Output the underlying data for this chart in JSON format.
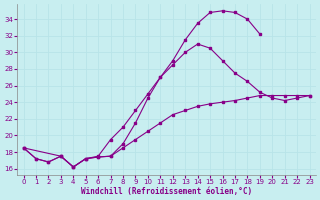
{
  "xlabel": "Windchill (Refroidissement éolien,°C)",
  "bg_color": "#c8eef0",
  "grid_color": "#b8e4e8",
  "line_color": "#880088",
  "x_ticks": [
    0,
    1,
    2,
    3,
    4,
    5,
    6,
    7,
    8,
    9,
    10,
    11,
    12,
    13,
    14,
    15,
    16,
    17,
    18,
    19,
    20,
    21,
    22,
    23
  ],
  "y_ticks": [
    16,
    18,
    20,
    22,
    24,
    26,
    28,
    30,
    32,
    34
  ],
  "xlim": [
    -0.5,
    23.5
  ],
  "ylim": [
    15.2,
    35.8
  ],
  "curve_upper_x": [
    0,
    1,
    2,
    3,
    4,
    5,
    6,
    7,
    8,
    9,
    10,
    11,
    12,
    13,
    14,
    15,
    16,
    17,
    18,
    19
  ],
  "curve_upper_y": [
    18.5,
    17.2,
    16.8,
    17.5,
    16.2,
    17.2,
    17.4,
    17.5,
    19.0,
    21.5,
    24.5,
    27.0,
    29.0,
    31.5,
    33.5,
    34.8,
    35.0,
    34.8,
    34.0,
    32.2
  ],
  "curve_mid_x": [
    0,
    3,
    4,
    5,
    6,
    7,
    8,
    9,
    10,
    11,
    12,
    13,
    14,
    15,
    16,
    17,
    18,
    19,
    20,
    21,
    22,
    23
  ],
  "curve_mid_y": [
    18.5,
    17.5,
    16.2,
    17.2,
    17.5,
    19.5,
    21.0,
    23.0,
    25.0,
    27.0,
    28.5,
    30.0,
    31.0,
    30.5,
    29.0,
    27.5,
    26.5,
    25.2,
    24.5,
    24.2,
    24.5,
    24.8
  ],
  "curve_low_x": [
    0,
    1,
    2,
    3,
    4,
    5,
    6,
    7,
    8,
    9,
    10,
    11,
    12,
    13,
    14,
    15,
    16,
    17,
    18,
    19,
    20,
    21,
    22,
    23
  ],
  "curve_low_y": [
    18.5,
    17.2,
    16.8,
    17.5,
    16.2,
    17.2,
    17.4,
    17.5,
    18.5,
    19.5,
    20.5,
    21.5,
    22.5,
    23.0,
    23.5,
    23.8,
    24.0,
    24.2,
    24.5,
    24.8,
    24.8,
    24.8,
    24.8,
    24.8
  ]
}
